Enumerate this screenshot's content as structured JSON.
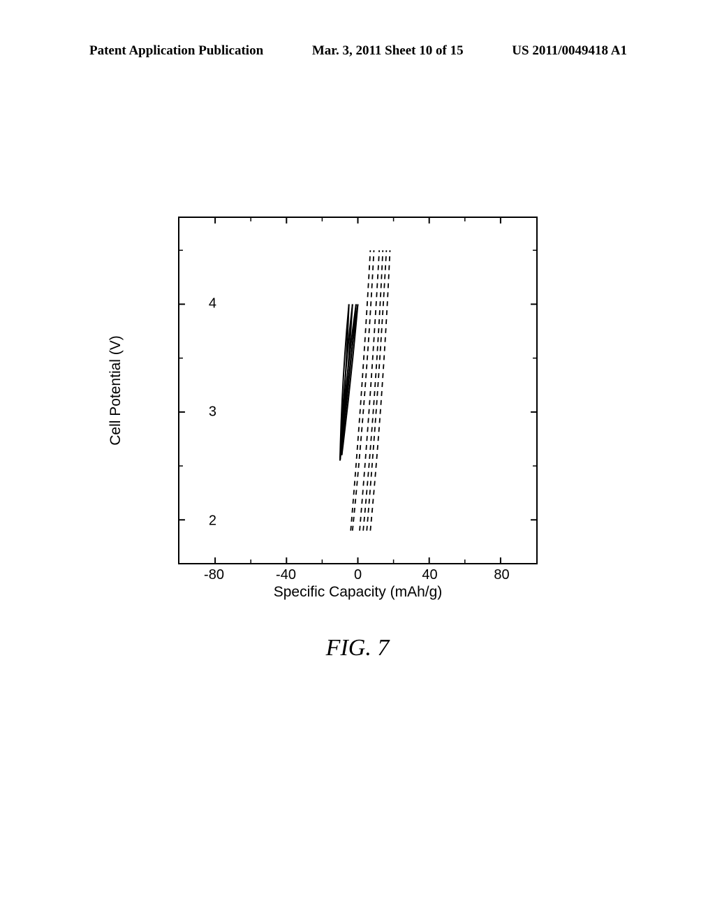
{
  "header": {
    "left": "Patent Application Publication",
    "center": "Mar. 3, 2011  Sheet 10 of 15",
    "right": "US 2011/0049418 A1"
  },
  "chart": {
    "type": "line",
    "xlabel": "Specific Capacity (mAh/g)",
    "ylabel": "Cell Potential (V)",
    "xlim": [
      -100,
      100
    ],
    "ylim": [
      1.6,
      4.8
    ],
    "xticks": [
      -80,
      -40,
      0,
      40,
      80
    ],
    "yticks": [
      2,
      3,
      4
    ],
    "label_fontsize": 21,
    "tick_fontsize": 20,
    "border_color": "#000000",
    "background_color": "#ffffff",
    "series": {
      "solid": {
        "style": "solid",
        "color": "#000000",
        "width": 2,
        "curves": [
          {
            "bottom_x": -10,
            "bottom_y": 2.55,
            "top_x": -5,
            "top_y": 4.0
          },
          {
            "bottom_x": -10,
            "bottom_y": 2.55,
            "top_x": -3,
            "top_y": 4.0
          },
          {
            "bottom_x": -10,
            "bottom_y": 2.55,
            "top_x": -1,
            "top_y": 4.0
          },
          {
            "bottom_x": -9,
            "bottom_y": 2.6,
            "top_x": 0,
            "top_y": 4.0
          }
        ]
      },
      "dashed": {
        "style": "dashed",
        "color": "#000000",
        "width": 1.8,
        "dash": "7 6",
        "curves": [
          {
            "bottom_x": -4,
            "bottom_y": 1.9,
            "top_x": 7,
            "top_y": 4.5
          },
          {
            "bottom_x": -3,
            "bottom_y": 1.9,
            "top_x": 9,
            "top_y": 4.5
          },
          {
            "bottom_x": 1,
            "bottom_y": 1.9,
            "top_x": 12,
            "top_y": 4.5
          },
          {
            "bottom_x": 3,
            "bottom_y": 1.9,
            "top_x": 14,
            "top_y": 4.5
          },
          {
            "bottom_x": 5,
            "bottom_y": 1.9,
            "top_x": 16,
            "top_y": 4.5
          },
          {
            "bottom_x": 7,
            "bottom_y": 1.9,
            "top_x": 18,
            "top_y": 4.5
          }
        ]
      }
    }
  },
  "figure_caption": "FIG. 7"
}
